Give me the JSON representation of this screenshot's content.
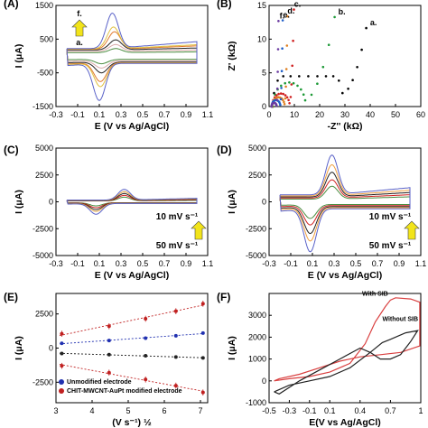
{
  "chart_data": [
    {
      "id": "A",
      "type": "line",
      "panel_label": "(A)",
      "xlabel": "E (V vs Ag/AgCl)",
      "ylabel": "I (μA)",
      "xlim": [
        -0.3,
        1.1
      ],
      "ylim": [
        -1500,
        1500
      ],
      "xticks": [
        "-0.3",
        "-0.1",
        "0.1",
        "0.3",
        "0.5",
        "0.7",
        "0.9",
        "1.1"
      ],
      "yticks": [
        "-1500",
        "-500",
        "500",
        "1500"
      ],
      "annotations": [
        "f.",
        "a."
      ],
      "series": [
        {
          "color": "#4a8c3f",
          "ipa": 120,
          "ipc": -130,
          "cap": 100,
          "epa": 0.25,
          "epc": 0.12
        },
        {
          "color": "#d9a9a9",
          "ipa": 200,
          "ipc": -220,
          "cap": 140,
          "epa": 0.25,
          "epc": 0.12
        },
        {
          "color": "#222222",
          "ipa": 300,
          "ipc": -320,
          "cap": 180,
          "epa": 0.25,
          "epc": 0.12
        },
        {
          "color": "#e07a2e",
          "ipa": 520,
          "ipc": -560,
          "cap": 200,
          "epa": 0.24,
          "epc": 0.11
        },
        {
          "color": "#e0c040",
          "ipa": 650,
          "ipc": -700,
          "cap": 210,
          "epa": 0.23,
          "epc": 0.11
        },
        {
          "color": "#5a62c8",
          "ipa": 1050,
          "ipc": -1100,
          "cap": 220,
          "epa": 0.22,
          "epc": 0.1
        }
      ]
    },
    {
      "id": "B",
      "type": "scatter",
      "panel_label": "(B)",
      "xlabel": "-Z'' (kΩ)",
      "ylabel": "Z' (kΩ)",
      "xlim": [
        0,
        60
      ],
      "ylim": [
        0,
        15
      ],
      "xticks": [
        "0",
        "10",
        "20",
        "30",
        "40",
        "50",
        "60"
      ],
      "yticks": [
        "0",
        "5",
        "10",
        "15"
      ],
      "series": [
        {
          "label": "a.",
          "color": "#000000",
          "rs": 1.5,
          "rct": 28,
          "tail": 25,
          "slope": 0.36
        },
        {
          "label": "b.",
          "color": "#1e9a38",
          "rs": 1.5,
          "rct": 13,
          "tail": 32,
          "slope": 0.36
        },
        {
          "label": "c.",
          "color": "#d02020",
          "rs": 1.2,
          "rct": 7,
          "tail": 4.5,
          "slope": 3.2
        },
        {
          "label": "d.",
          "color": "#e08020",
          "rs": 1.2,
          "rct": 5,
          "tail": 3,
          "slope": 4.5
        },
        {
          "label": "e.",
          "color": "#2060c8",
          "rs": 1.0,
          "rct": 3.5,
          "tail": 2.5,
          "slope": 5.2
        },
        {
          "label": "f.",
          "color": "#6a3aa0",
          "rs": 1.0,
          "rct": 2,
          "tail": 2,
          "slope": 6.5
        }
      ]
    },
    {
      "id": "C",
      "type": "line",
      "panel_label": "(C)",
      "xlabel": "E (V vs Ag/AgCl)",
      "ylabel": "I (μA)",
      "xlim": [
        -0.3,
        1.1
      ],
      "ylim": [
        -5000,
        5000
      ],
      "xticks": [
        "-0.3",
        "-0.1",
        "0.1",
        "0.3",
        "0.5",
        "0.7",
        "0.9",
        "1.1"
      ],
      "yticks": [
        "-5000",
        "-2500",
        "0",
        "2500",
        "5000"
      ],
      "annotations": [
        "10 mV s⁻¹",
        "50 mV s⁻¹"
      ],
      "series": [
        {
          "color": "#4a8c3f",
          "ipa": 350,
          "ipc": -300,
          "cap": 80,
          "epa": 0.33,
          "epc": 0.07
        },
        {
          "color": "#d02020",
          "ipa": 500,
          "ipc": -450,
          "cap": 100,
          "epa": 0.33,
          "epc": 0.07
        },
        {
          "color": "#222222",
          "ipa": 650,
          "ipc": -600,
          "cap": 120,
          "epa": 0.33,
          "epc": 0.07
        },
        {
          "color": "#e0a040",
          "ipa": 800,
          "ipc": -750,
          "cap": 140,
          "epa": 0.33,
          "epc": 0.07
        },
        {
          "color": "#5a62c8",
          "ipa": 1000,
          "ipc": -1000,
          "cap": 160,
          "epa": 0.33,
          "epc": 0.07
        }
      ]
    },
    {
      "id": "D",
      "type": "line",
      "panel_label": "(D)",
      "xlabel": "E (V vs Ag/AgCl)",
      "ylabel": "I (μA)",
      "xlim": [
        -0.3,
        1.1
      ],
      "ylim": [
        -5000,
        5000
      ],
      "xticks": [
        "-0.3",
        "-0.1",
        "0.1",
        "0.3",
        "0.5",
        "0.7",
        "0.9",
        "1.1"
      ],
      "yticks": [
        "-5000",
        "-2500",
        "0",
        "2500",
        "5000"
      ],
      "annotations": [
        "10 mV s⁻¹",
        "50 mV s⁻¹"
      ],
      "series": [
        {
          "color": "#4a8c3f",
          "ipa": 1200,
          "ipc": -1300,
          "cap": 250,
          "epa": 0.28,
          "epc": 0.08
        },
        {
          "color": "#d02020",
          "ipa": 1700,
          "ipc": -1800,
          "cap": 350,
          "epa": 0.28,
          "epc": 0.08
        },
        {
          "color": "#222222",
          "ipa": 2300,
          "ipc": -2500,
          "cap": 450,
          "epa": 0.28,
          "epc": 0.08
        },
        {
          "color": "#f0a040",
          "ipa": 2900,
          "ipc": -3100,
          "cap": 550,
          "epa": 0.28,
          "epc": 0.08
        },
        {
          "color": "#5a62c8",
          "ipa": 3700,
          "ipc": -4000,
          "cap": 650,
          "epa": 0.28,
          "epc": 0.08
        }
      ]
    },
    {
      "id": "E",
      "type": "scatter",
      "panel_label": "(E)",
      "xlabel": "(V s⁻¹) ½",
      "ylabel": "I (μA)",
      "xlim": [
        3,
        7.2
      ],
      "ylim": [
        -4000,
        4000
      ],
      "xticks": [
        "3",
        "4",
        "5",
        "6",
        "7"
      ],
      "yticks": [
        "-2500",
        "0",
        "2500"
      ],
      "legend": [
        "Unmodified electrode",
        "CHIT-MWCNT-AuPt modified electrode"
      ],
      "x": [
        3.16,
        4.47,
        5.48,
        6.32,
        7.07
      ],
      "series": [
        {
          "color": "#c02020",
          "values": [
            1050,
            1600,
            2150,
            2700,
            3250
          ],
          "error": 220
        },
        {
          "color": "#2030b0",
          "values": [
            350,
            550,
            730,
            900,
            1100
          ],
          "error": 60
        },
        {
          "color": "#222222",
          "values": [
            -400,
            -480,
            -560,
            -650,
            -720
          ],
          "error": 50
        },
        {
          "color": "#c02020",
          "values": [
            -1300,
            -1800,
            -2300,
            -2750,
            -3250
          ],
          "error": 220
        }
      ]
    },
    {
      "id": "F",
      "type": "line",
      "panel_label": "(F)",
      "xlabel": "E(V vs Ag/AgCl)",
      "ylabel": "I (μA)",
      "xlim": [
        -0.5,
        1.0
      ],
      "ylim": [
        -1000,
        4000
      ],
      "xticks": [
        "-0.5",
        "-0.3",
        "-0.1",
        "0.1",
        "0.4",
        "0.7",
        "1"
      ],
      "yticks": [
        "-1000",
        "0",
        "1000",
        "2000",
        "3000"
      ],
      "annotations": [
        "With SIB",
        "Without SIB"
      ],
      "series": [
        {
          "name": "With SIB",
          "color": "#d94040"
        },
        {
          "name": "Without SIB",
          "color": "#222222"
        }
      ]
    }
  ]
}
